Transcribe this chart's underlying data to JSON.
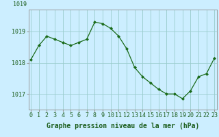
{
  "x": [
    0,
    1,
    2,
    3,
    4,
    5,
    6,
    7,
    8,
    9,
    10,
    11,
    12,
    13,
    14,
    15,
    16,
    17,
    18,
    19,
    20,
    21,
    22,
    23
  ],
  "y": [
    1018.1,
    1018.55,
    1018.85,
    1018.75,
    1018.65,
    1018.55,
    1018.65,
    1018.75,
    1019.3,
    1019.25,
    1019.1,
    1018.85,
    1018.45,
    1017.85,
    1017.55,
    1017.35,
    1017.15,
    1017.0,
    1017.0,
    1016.85,
    1017.1,
    1017.55,
    1017.65,
    1018.15
  ],
  "line_color": "#1a6b1a",
  "marker_color": "#1a6b1a",
  "bg_color": "#cceeff",
  "grid_color": "#99cccc",
  "xlabel": "Graphe pression niveau de la mer (hPa)",
  "xlabel_fontsize": 7,
  "tick_label_fontsize": 6,
  "ytick_labels": [
    "1017",
    "1018",
    "1019"
  ],
  "ytick_values": [
    1017,
    1018,
    1019
  ],
  "ylim": [
    1016.5,
    1019.7
  ],
  "xlim": [
    -0.3,
    23.3
  ]
}
